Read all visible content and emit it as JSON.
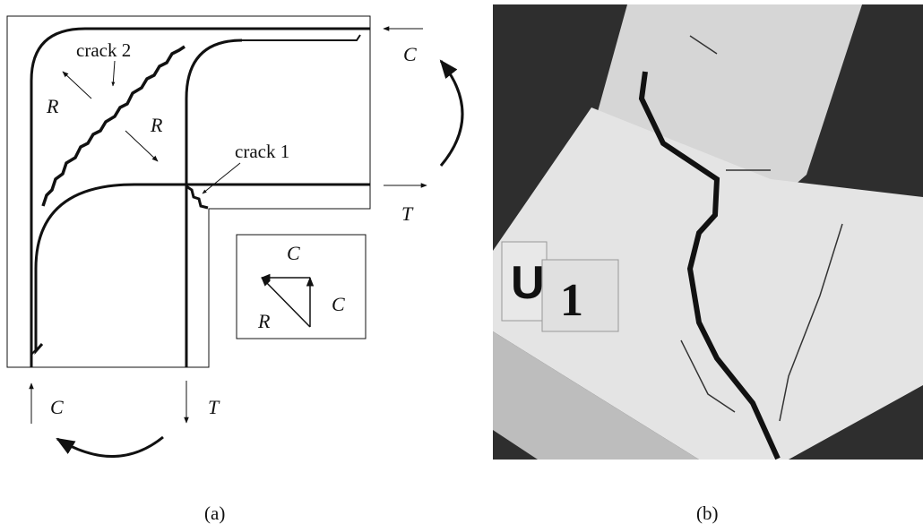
{
  "panel_a": {
    "crack_labels": [
      "crack 2",
      "crack 1"
    ],
    "force_labels": [
      "C",
      "T",
      "C",
      "T"
    ],
    "resultant_labels": [
      "R",
      "R"
    ],
    "inset_labels": [
      "C",
      "C",
      "R"
    ],
    "caption": "(a)"
  },
  "panel_b": {
    "specimen_label": [
      "U",
      "1"
    ],
    "caption": "(b)"
  }
}
